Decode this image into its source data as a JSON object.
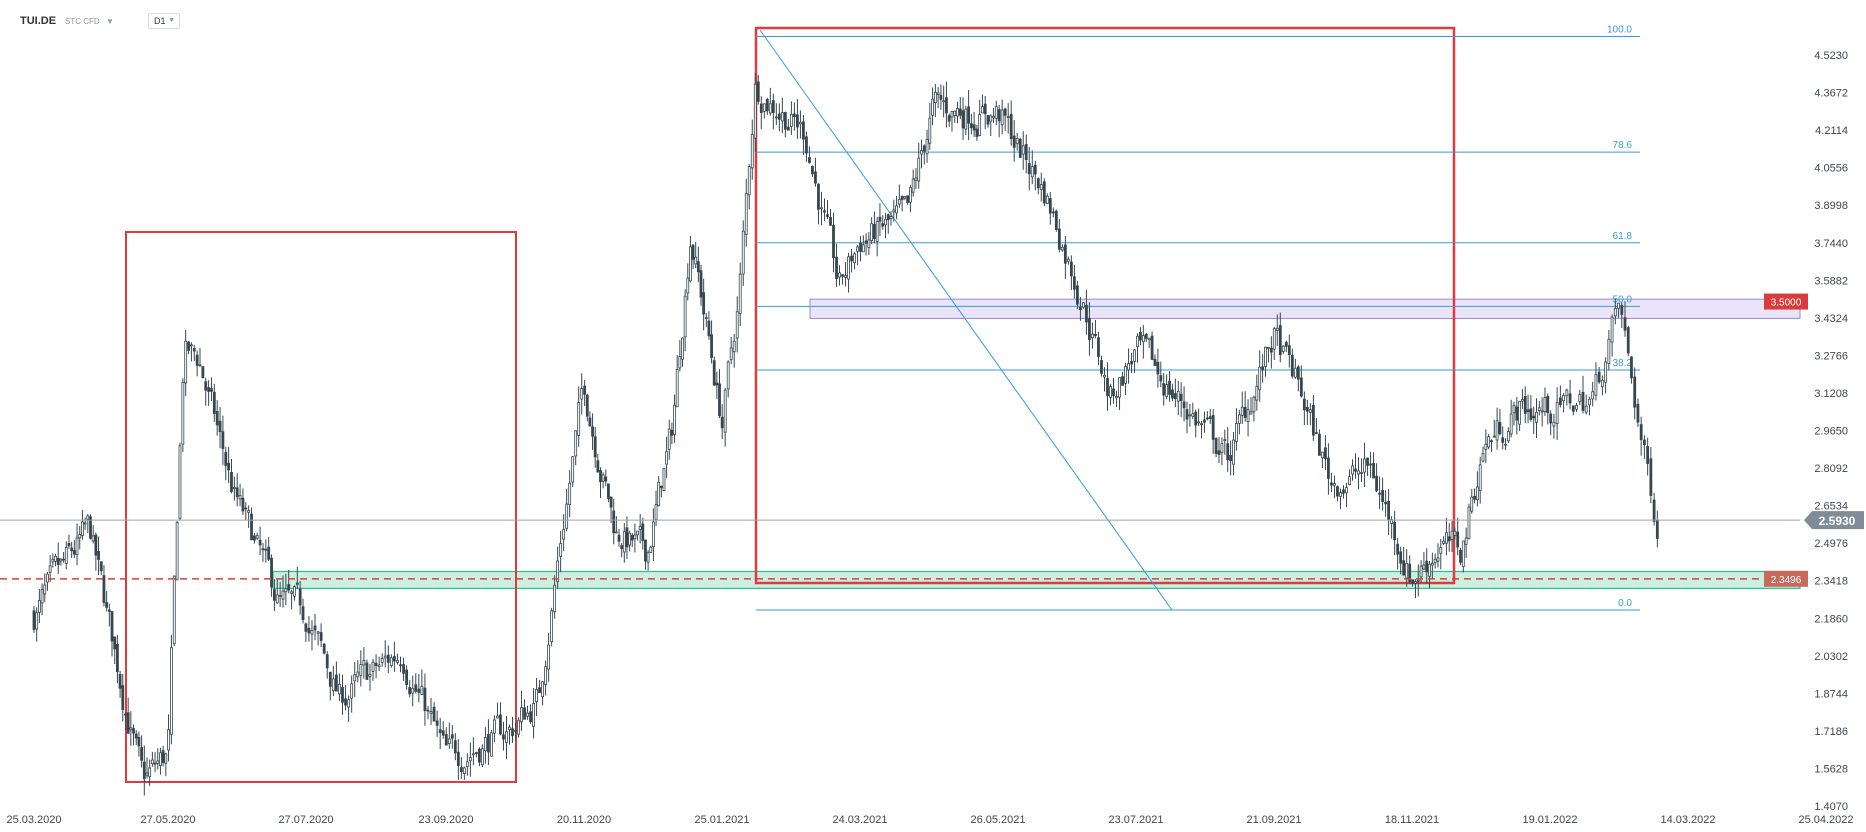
{
  "toolbar": {
    "symbol": "TUI.DE",
    "instrument_type": "STC CFD",
    "timeframe": "D1",
    "dropdown_icon": "chevron-down-icon"
  },
  "chart_data": {
    "type": "candlestick",
    "title": "",
    "xlabel": "",
    "ylabel": "",
    "x_tick_labels": [
      "25.03.2020",
      "27.05.2020",
      "27.07.2020",
      "23.09.2020",
      "20.11.2020",
      "25.01.2021",
      "24.03.2021",
      "26.05.2021",
      "23.07.2021",
      "21.09.2021",
      "18.11.2021",
      "19.01.2022",
      "14.03.2022",
      "25.04.2022"
    ],
    "y_tick_labels": [
      "4.5230",
      "4.3672",
      "4.2114",
      "4.0556",
      "3.8998",
      "3.7440",
      "3.5882",
      "3.4324",
      "3.2766",
      "3.1208",
      "2.9650",
      "2.8092",
      "2.6534",
      "2.4976",
      "2.3418",
      "2.1860",
      "2.0302",
      "1.8744",
      "1.7186",
      "1.5628",
      "1.4070"
    ],
    "ylim": [
      1.407,
      4.523
    ],
    "grid": false,
    "current_price": {
      "label": "2.5930",
      "value": 2.593,
      "color": "#7f8c97"
    },
    "price_tags": [
      {
        "label": "3.5000",
        "value": 3.5,
        "color": "#d93b3b"
      },
      {
        "label": "2.3496",
        "value": 2.3496,
        "color": "#c8695e"
      }
    ],
    "fibonacci": {
      "color": "#3a9ad9",
      "levels": [
        {
          "label": "100.0",
          "value": 4.6
        },
        {
          "label": "78.6",
          "value": 4.12
        },
        {
          "label": "61.8",
          "value": 3.744
        },
        {
          "label": "50.0",
          "value": 3.48
        },
        {
          "label": "38.2",
          "value": 3.216
        },
        {
          "label": "0.0",
          "value": 2.22
        }
      ]
    },
    "support_zone": {
      "from": 2.31,
      "to": 2.38,
      "color": "#2ec286"
    },
    "resistance_zone": {
      "from": 3.43,
      "to": 3.51,
      "color": "#9b86e0"
    },
    "dashed_level": {
      "value": 2.3496,
      "color": "#e03a3a"
    },
    "candles": {
      "count": 560,
      "up_color": "#ffffff",
      "down_color": "#37474f",
      "outline_color": "#37474f",
      "approx_closes": [
        {
          "date": "25.03.2020",
          "close": 2.2
        },
        {
          "date": "20.04.2020",
          "close": 2.55
        },
        {
          "date": "15.05.2020",
          "close": 1.5
        },
        {
          "date": "27.05.2020",
          "close": 1.62
        },
        {
          "date": "03.06.2020",
          "close": 3.3
        },
        {
          "date": "10.06.2020",
          "close": 3.25
        },
        {
          "date": "25.06.2020",
          "close": 2.7
        },
        {
          "date": "15.07.2020",
          "close": 2.25
        },
        {
          "date": "27.07.2020",
          "close": 2.2
        },
        {
          "date": "10.08.2020",
          "close": 1.85
        },
        {
          "date": "05.09.2020",
          "close": 2.05
        },
        {
          "date": "23.09.2020",
          "close": 1.6
        },
        {
          "date": "20.10.2020",
          "close": 1.72
        },
        {
          "date": "01.11.2020",
          "close": 1.85
        },
        {
          "date": "10.11.2020",
          "close": 2.5
        },
        {
          "date": "20.11.2020",
          "close": 3.15
        },
        {
          "date": "05.12.2020",
          "close": 2.55
        },
        {
          "date": "20.12.2020",
          "close": 2.45
        },
        {
          "date": "01.01.2021",
          "close": 2.95
        },
        {
          "date": "10.01.2021",
          "close": 3.8
        },
        {
          "date": "25.01.2021",
          "close": 3.0
        },
        {
          "date": "01.02.2021",
          "close": 3.5
        },
        {
          "date": "08.02.2021",
          "close": 4.4
        },
        {
          "date": "01.03.2021",
          "close": 4.2
        },
        {
          "date": "15.03.2021",
          "close": 3.55
        },
        {
          "date": "24.03.2021",
          "close": 3.75
        },
        {
          "date": "15.04.2021",
          "close": 3.85
        },
        {
          "date": "26.04.2021",
          "close": 4.3
        },
        {
          "date": "26.05.2021",
          "close": 4.28
        },
        {
          "date": "15.06.2021",
          "close": 3.95
        },
        {
          "date": "01.07.2021",
          "close": 3.5
        },
        {
          "date": "12.07.2021",
          "close": 3.1
        },
        {
          "date": "23.07.2021",
          "close": 3.3
        },
        {
          "date": "15.08.2021",
          "close": 3.05
        },
        {
          "date": "01.09.2021",
          "close": 2.85
        },
        {
          "date": "21.09.2021",
          "close": 3.35
        },
        {
          "date": "01.10.2021",
          "close": 3.15
        },
        {
          "date": "15.10.2021",
          "close": 2.75
        },
        {
          "date": "01.11.2021",
          "close": 2.8
        },
        {
          "date": "18.11.2021",
          "close": 2.35
        },
        {
          "date": "01.12.2021",
          "close": 2.5
        },
        {
          "date": "10.12.2021",
          "close": 2.45
        },
        {
          "date": "20.12.2021",
          "close": 2.9
        },
        {
          "date": "05.01.2022",
          "close": 3.05
        },
        {
          "date": "19.01.2022",
          "close": 3.05
        },
        {
          "date": "05.02.2022",
          "close": 3.1
        },
        {
          "date": "15.02.2022",
          "close": 3.48
        },
        {
          "date": "25.02.2022",
          "close": 2.85
        },
        {
          "date": "02.03.2022",
          "close": 2.59
        }
      ]
    }
  }
}
